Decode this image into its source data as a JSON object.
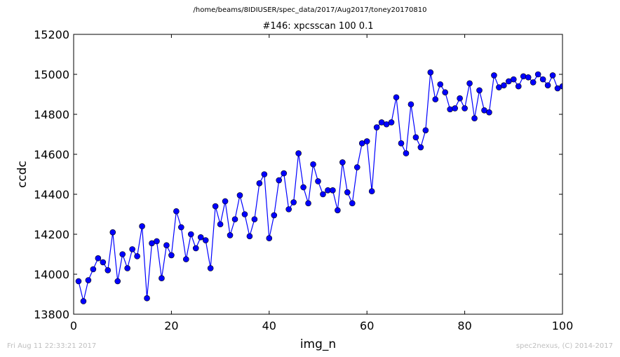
{
  "header": {
    "path": "/home/beams/8IDIUSER/spec_data/2017/Aug2017/toney20170810"
  },
  "footer": {
    "timestamp": "Fri Aug 11 22:33:21 2017",
    "credit": "spec2nexus, (C) 2014-2017"
  },
  "colors": {
    "series": "#0000ff",
    "axes": "#000000",
    "background": "#ffffff"
  },
  "chart_data": {
    "type": "line",
    "title": "#146: xpcsscan 100 0.1",
    "xlabel": "img_n",
    "ylabel": "ccdc",
    "xlim": [
      0,
      100
    ],
    "ylim": [
      13800,
      15200
    ],
    "xticks": [
      0,
      20,
      40,
      60,
      80,
      100
    ],
    "yticks": [
      13800,
      14000,
      14200,
      14400,
      14600,
      14800,
      15000,
      15200
    ],
    "grid": false,
    "marker": "circle",
    "x": [
      1,
      2,
      3,
      4,
      5,
      6,
      7,
      8,
      9,
      10,
      11,
      12,
      13,
      14,
      15,
      16,
      17,
      18,
      19,
      20,
      21,
      22,
      23,
      24,
      25,
      26,
      27,
      28,
      29,
      30,
      31,
      32,
      33,
      34,
      35,
      36,
      37,
      38,
      39,
      40,
      41,
      42,
      43,
      44,
      45,
      46,
      47,
      48,
      49,
      50,
      51,
      52,
      53,
      54,
      55,
      56,
      57,
      58,
      59,
      60,
      61,
      62,
      63,
      64,
      65,
      66,
      67,
      68,
      69,
      70,
      71,
      72,
      73,
      74,
      75,
      76,
      77,
      78,
      79,
      80,
      81,
      82,
      83,
      84,
      85,
      86,
      87,
      88,
      89,
      90,
      91,
      92,
      93,
      94,
      95,
      96,
      97,
      98,
      99,
      100
    ],
    "y": [
      13965,
      13865,
      13970,
      14025,
      14080,
      14060,
      14020,
      14210,
      13965,
      14100,
      14030,
      14125,
      14090,
      14240,
      13880,
      14155,
      14165,
      13980,
      14145,
      14095,
      14315,
      14235,
      14075,
      14200,
      14130,
      14185,
      14170,
      14030,
      14340,
      14250,
      14365,
      14195,
      14275,
      14395,
      14300,
      14190,
      14275,
      14455,
      14500,
      14180,
      14295,
      14470,
      14505,
      14325,
      14360,
      14605,
      14435,
      14355,
      14550,
      14465,
      14400,
      14420,
      14420,
      14320,
      14560,
      14410,
      14355,
      14535,
      14655,
      14665,
      14415,
      14735,
      14760,
      14750,
      14760,
      14885,
      14655,
      14605,
      14850,
      14685,
      14635,
      14720,
      15010,
      14875,
      14950,
      14910,
      14825,
      14830,
      14880,
      14830,
      14955,
      14780,
      14920,
      14820,
      14810,
      14995,
      14935,
      14945,
      14965,
      14975,
      14940,
      14990,
      14985,
      14960,
      15000,
      14975,
      14945,
      14995,
      14930,
      14940
    ]
  }
}
